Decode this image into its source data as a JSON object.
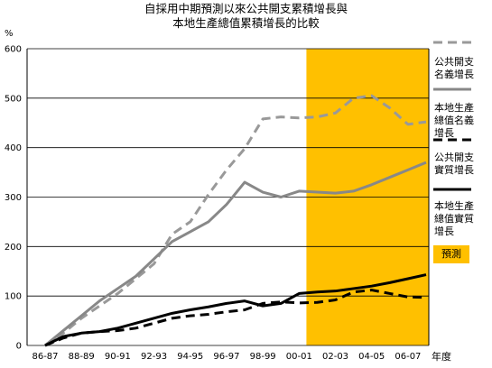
{
  "chart_data": {
    "type": "line",
    "title": "自採用中期預測以來公共開支累積增長與",
    "subtitle": "本地生產總值累積增長的比較",
    "ylabel": "%",
    "xlabel": "年度",
    "ylim": [
      0,
      600
    ],
    "yticks": [
      "0",
      "100",
      "200",
      "300",
      "400",
      "500",
      "600"
    ],
    "xtick_labels": [
      "86-87",
      "88-89",
      "90-91",
      "92-93",
      "94-95",
      "96-97",
      "98-99",
      "00-01",
      "02-03",
      "04-05",
      "06-07"
    ],
    "x": [
      0,
      1,
      2,
      3,
      4,
      5,
      6,
      7,
      8,
      9,
      10,
      11,
      12,
      13,
      14,
      15,
      16,
      17,
      18,
      19,
      20,
      21
    ],
    "forecast_label": "預測",
    "forecast_start_x": 15,
    "series": [
      {
        "name": "公共開支名義增長",
        "style": "dashed",
        "color": "#999999",
        "values": [
          0,
          25,
          55,
          80,
          105,
          135,
          165,
          225,
          250,
          305,
          355,
          398,
          458,
          462,
          460,
          462,
          470,
          500,
          505,
          480,
          447,
          452
        ]
      },
      {
        "name": "本地生產總值名義增長",
        "style": "solid",
        "color": "#888888",
        "values": [
          0,
          30,
          60,
          90,
          115,
          140,
          175,
          210,
          230,
          250,
          285,
          330,
          310,
          300,
          312,
          310,
          308,
          312,
          325,
          340,
          355,
          370
        ]
      },
      {
        "name": "公共開支實質增長",
        "style": "dashed",
        "color": "#000000",
        "values": [
          0,
          15,
          25,
          28,
          30,
          35,
          45,
          55,
          60,
          63,
          68,
          72,
          85,
          88,
          86,
          87,
          92,
          108,
          112,
          105,
          98,
          97
        ]
      },
      {
        "name": "本地生產總值實質增長",
        "style": "solid",
        "color": "#000000",
        "values": [
          0,
          18,
          25,
          28,
          35,
          45,
          55,
          65,
          72,
          78,
          85,
          90,
          80,
          85,
          105,
          108,
          110,
          115,
          120,
          127,
          135,
          143
        ]
      }
    ],
    "legend_position": "right",
    "grid": true
  },
  "legend_lines": [
    [
      "公共開支",
      "名義增長"
    ],
    [
      "本地生產",
      "總值名義",
      "增長"
    ],
    [
      "公共開支",
      "實質增長"
    ],
    [
      "本地生產",
      "總值實質",
      "增長"
    ]
  ]
}
